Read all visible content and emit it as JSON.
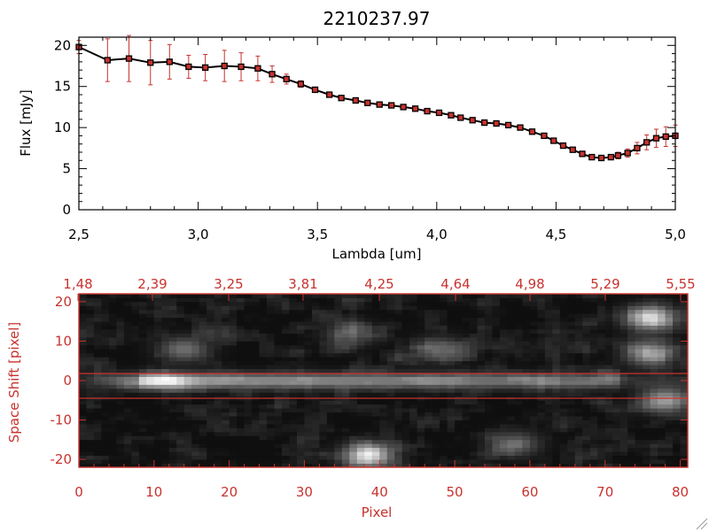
{
  "colors": {
    "red": "#c8322e",
    "black": "#000000",
    "background": "#ffffff"
  },
  "chart_data": [
    {
      "type": "line",
      "title": "2210237.97",
      "xlabel": "Lambda [um]",
      "ylabel": "Flux [mJy]",
      "xlim": [
        2.5,
        5.0
      ],
      "ylim": [
        0,
        21
      ],
      "xticks": [
        "2.5",
        "3.0",
        "3.5",
        "4.0",
        "4.5",
        "5.0"
      ],
      "yticks": [
        "0",
        "5",
        "10",
        "15",
        "20"
      ],
      "series": [
        {
          "name": "flux",
          "x": [
            2.5,
            2.62,
            2.71,
            2.8,
            2.88,
            2.96,
            3.03,
            3.11,
            3.18,
            3.25,
            3.31,
            3.37,
            3.43,
            3.49,
            3.55,
            3.6,
            3.66,
            3.71,
            3.76,
            3.81,
            3.86,
            3.91,
            3.96,
            4.01,
            4.06,
            4.1,
            4.15,
            4.2,
            4.25,
            4.3,
            4.35,
            4.4,
            4.45,
            4.49,
            4.53,
            4.57,
            4.61,
            4.65,
            4.69,
            4.73,
            4.76,
            4.8,
            4.84,
            4.88,
            4.92,
            4.96,
            5.0
          ],
          "y": [
            19.8,
            18.2,
            18.4,
            17.9,
            18.0,
            17.4,
            17.3,
            17.5,
            17.4,
            17.2,
            16.5,
            15.9,
            15.3,
            14.6,
            14.0,
            13.6,
            13.3,
            13.0,
            12.8,
            12.7,
            12.5,
            12.3,
            12.0,
            11.8,
            11.5,
            11.2,
            10.9,
            10.6,
            10.5,
            10.3,
            10.0,
            9.5,
            9.0,
            8.4,
            7.8,
            7.3,
            6.8,
            6.4,
            6.3,
            6.4,
            6.6,
            6.9,
            7.5,
            8.2,
            8.7,
            8.9,
            9.0
          ],
          "err": [
            0.8,
            2.6,
            2.8,
            2.7,
            2.1,
            1.4,
            1.6,
            1.9,
            1.7,
            1.5,
            1.0,
            0.6,
            0.4,
            0.3,
            0.3,
            0.3,
            0.2,
            0.2,
            0.2,
            0.2,
            0.2,
            0.2,
            0.2,
            0.2,
            0.2,
            0.2,
            0.2,
            0.2,
            0.2,
            0.2,
            0.2,
            0.2,
            0.2,
            0.2,
            0.2,
            0.2,
            0.2,
            0.2,
            0.2,
            0.2,
            0.4,
            0.5,
            0.7,
            0.9,
            1.1,
            1.2,
            1.3
          ]
        }
      ]
    },
    {
      "type": "heatmap",
      "xlabel": "Pixel",
      "ylabel": "Space Shift [pixel]",
      "xlim": [
        0,
        81
      ],
      "ylim": [
        -22,
        22
      ],
      "xticks": [
        "0",
        "10",
        "20",
        "30",
        "40",
        "50",
        "60",
        "70",
        "80"
      ],
      "yticks": [
        "-20",
        "-10",
        "0",
        "10",
        "20"
      ],
      "top_axis_label": "",
      "top_ticks": [
        "1.48",
        "2.39",
        "3.25",
        "3.81",
        "4.25",
        "4.64",
        "4.98",
        "5.29",
        "5.55"
      ],
      "extraction_window": [
        -3,
        3
      ],
      "trace": {
        "center": 0,
        "peak_pixel": 11,
        "peak_value": 1.0
      },
      "blobs": [
        {
          "x": 38.5,
          "y": -19,
          "value": 0.85
        },
        {
          "x": 76,
          "y": 16,
          "value": 0.75
        },
        {
          "x": 76,
          "y": 7,
          "value": 0.6
        },
        {
          "x": 78,
          "y": -5,
          "value": 0.6
        },
        {
          "x": 14,
          "y": 8,
          "value": 0.4
        },
        {
          "x": 36,
          "y": 12,
          "value": 0.3
        },
        {
          "x": 48,
          "y": 8,
          "value": 0.35
        },
        {
          "x": 58,
          "y": -16,
          "value": 0.35
        }
      ]
    }
  ]
}
